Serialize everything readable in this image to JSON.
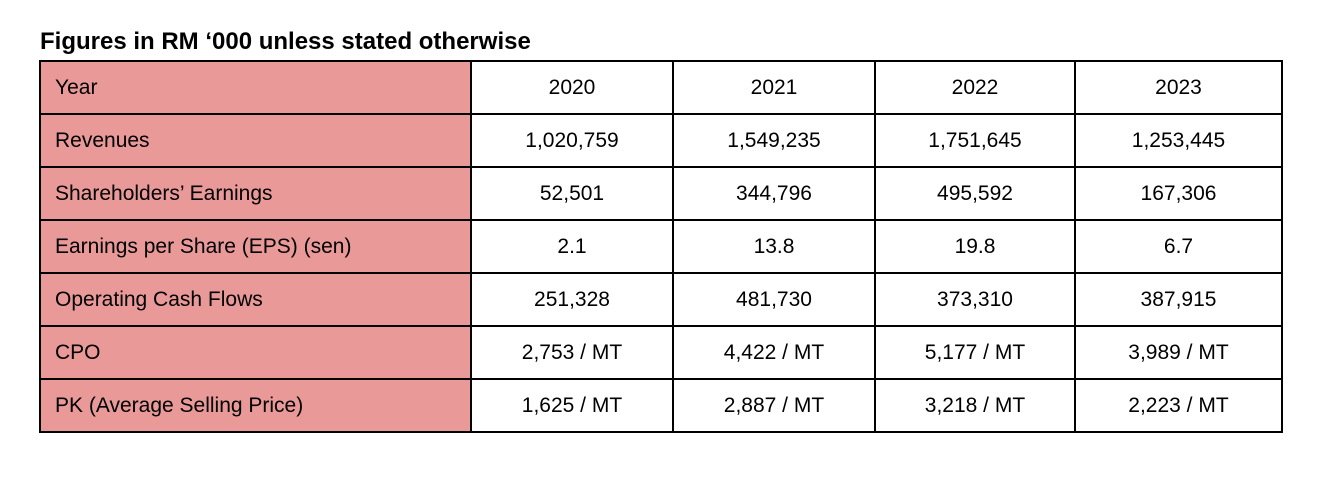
{
  "caption": "Figures in RM ‘000 unless stated otherwise",
  "table": {
    "header": {
      "label": "Year",
      "years": [
        "2020",
        "2021",
        "2022",
        "2023"
      ]
    },
    "rows": [
      {
        "label": "Revenues",
        "values": [
          "1,020,759",
          "1,549,235",
          "1,751,645",
          "1,253,445"
        ]
      },
      {
        "label": "Shareholders’ Earnings",
        "values": [
          "52,501",
          "344,796",
          "495,592",
          "167,306"
        ]
      },
      {
        "label": "Earnings per Share (EPS) (sen)",
        "values": [
          "2.1",
          "13.8",
          "19.8",
          "6.7"
        ]
      },
      {
        "label": "Operating Cash Flows",
        "values": [
          "251,328",
          "481,730",
          "373,310",
          "387,915"
        ]
      },
      {
        "label": "CPO",
        "values": [
          "2,753 / MT",
          "4,422 / MT",
          "5,177 / MT",
          "3,989 / MT"
        ]
      },
      {
        "label": "PK (Average Selling Price)",
        "values": [
          "1,625 / MT",
          "2,887 / MT",
          "3,218 / MT",
          "2,223 / MT"
        ]
      }
    ]
  },
  "colors": {
    "label_fill": "#ea9999",
    "border": "#000000"
  }
}
